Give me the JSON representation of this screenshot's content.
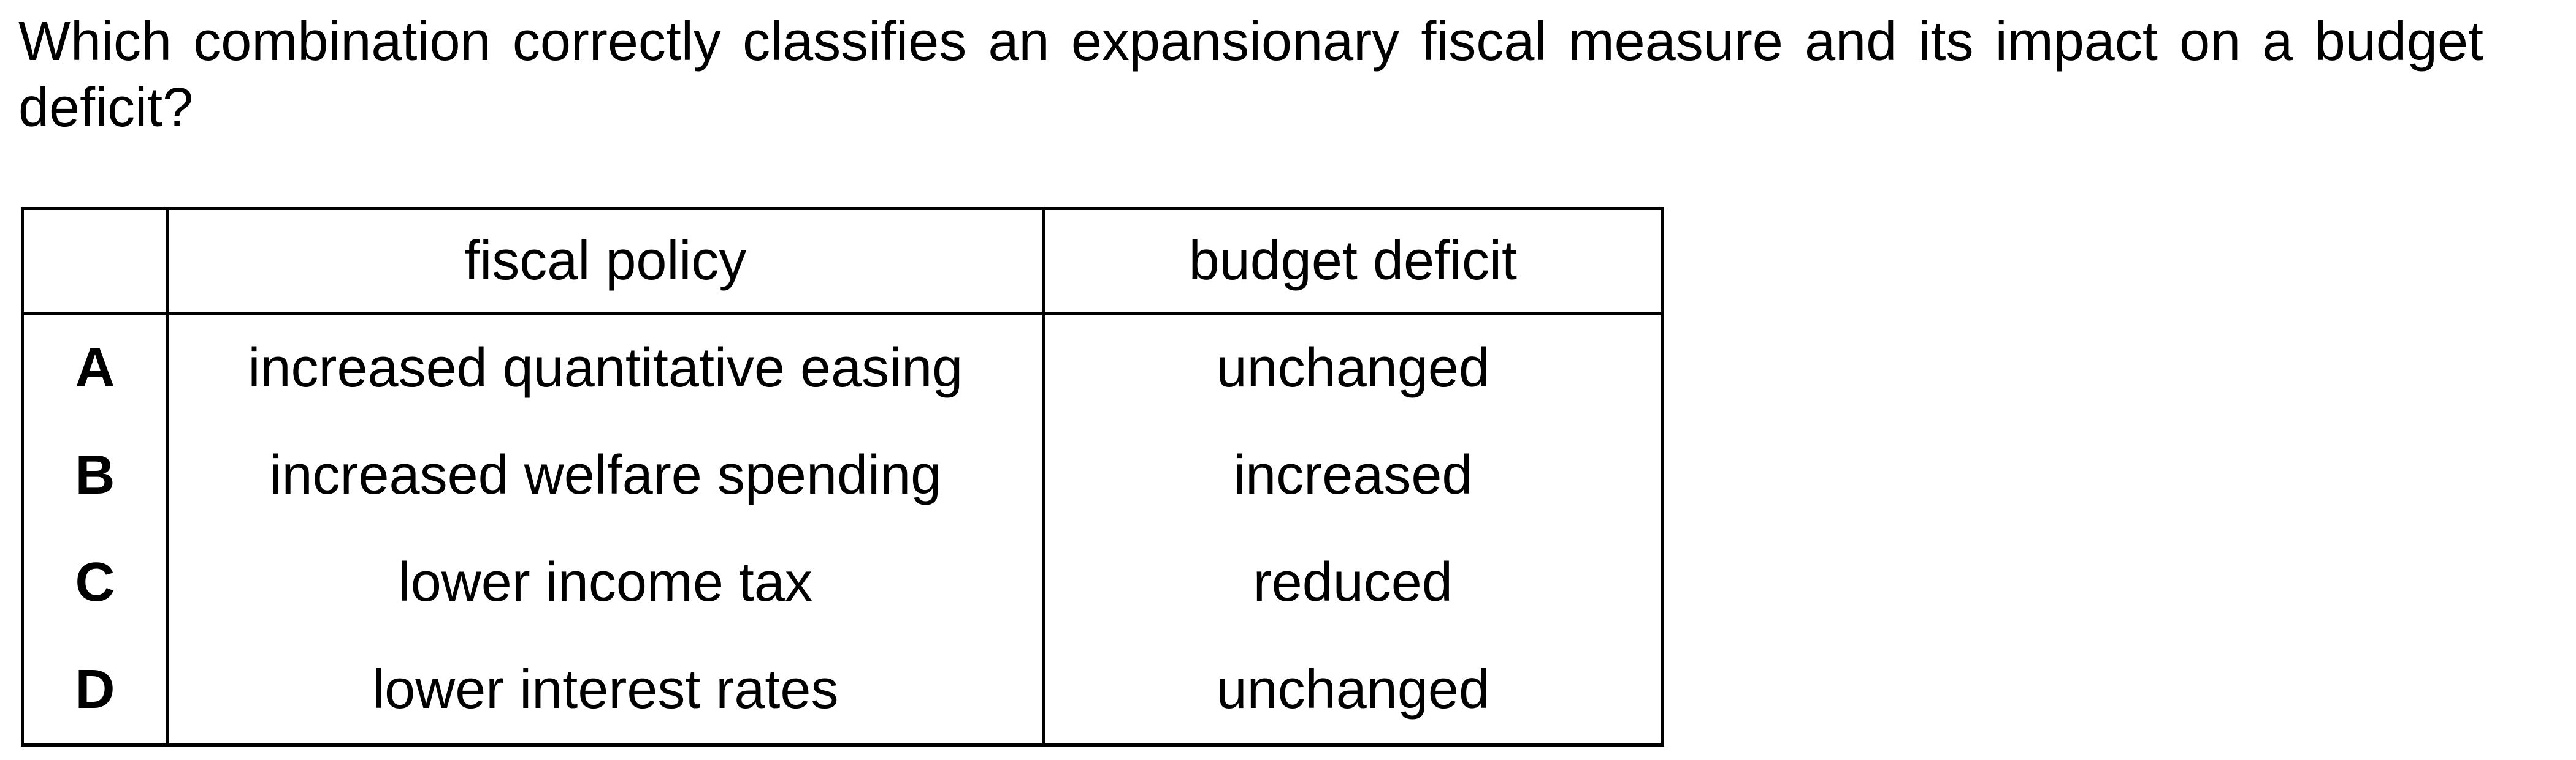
{
  "question": {
    "text": "Which combination correctly classifies an expansionary fiscal measure and its impact on a budget deficit?"
  },
  "table": {
    "headers": {
      "letter": "",
      "fiscal_policy": "fiscal policy",
      "budget_deficit": "budget deficit"
    },
    "rows": [
      {
        "letter": "A",
        "fiscal_policy": "increased quantitative easing",
        "budget_deficit": "unchanged"
      },
      {
        "letter": "B",
        "fiscal_policy": "increased welfare spending",
        "budget_deficit": "increased"
      },
      {
        "letter": "C",
        "fiscal_policy": "lower income tax",
        "budget_deficit": "reduced"
      },
      {
        "letter": "D",
        "fiscal_policy": "lower interest rates",
        "budget_deficit": "unchanged"
      }
    ]
  }
}
